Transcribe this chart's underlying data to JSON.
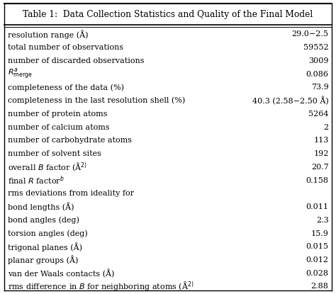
{
  "title": "Table 1:  Data Collection Statistics and Quality of the Final Model",
  "rows": [
    {
      "label": "resolution range (Å)",
      "value": "29.0−2.5"
    },
    {
      "label": "total number of observations",
      "value": "59552"
    },
    {
      "label": "number of discarded observations",
      "value": "3009"
    },
    {
      "label": "$R_{\\mathrm{merge}}^{a}$",
      "value": "0.086"
    },
    {
      "label": "completeness of the data (%)",
      "value": "73.9"
    },
    {
      "label": "completeness in the last resolution shell (%)",
      "value": "40.3 (2.58−2.50 Å)"
    },
    {
      "label": "number of protein atoms",
      "value": "5264"
    },
    {
      "label": "number of calcium atoms",
      "value": "2"
    },
    {
      "label": "number of carbohydrate atoms",
      "value": "113"
    },
    {
      "label": "number of solvent sites",
      "value": "192"
    },
    {
      "label": "overall $B$ factor (Å$^{2)}$",
      "value": "20.7"
    },
    {
      "label": "final $R$ factor$^{b}$",
      "value": "0.158"
    },
    {
      "label": "rms deviations from ideality for",
      "value": ""
    },
    {
      "label": "bond lengths (Å)",
      "value": "0.011"
    },
    {
      "label": "bond angles (deg)",
      "value": "2.3"
    },
    {
      "label": "torsion angles (deg)",
      "value": "15.9"
    },
    {
      "label": "trigonal planes (Å)",
      "value": "0.015"
    },
    {
      "label": "planar groups (Å)",
      "value": "0.012"
    },
    {
      "label": "van der Waals contacts (Å)",
      "value": "0.028"
    },
    {
      "label": "rms difference in $B$ for neighboring atoms (Å$^{2)}$",
      "value": "2.88"
    }
  ],
  "bg_color": "#ffffff",
  "border_color": "#000000",
  "text_color": "#000000",
  "title_fontsize": 8.8,
  "row_fontsize": 8.0,
  "fig_width": 4.74,
  "fig_height": 4.15,
  "dpi": 100
}
